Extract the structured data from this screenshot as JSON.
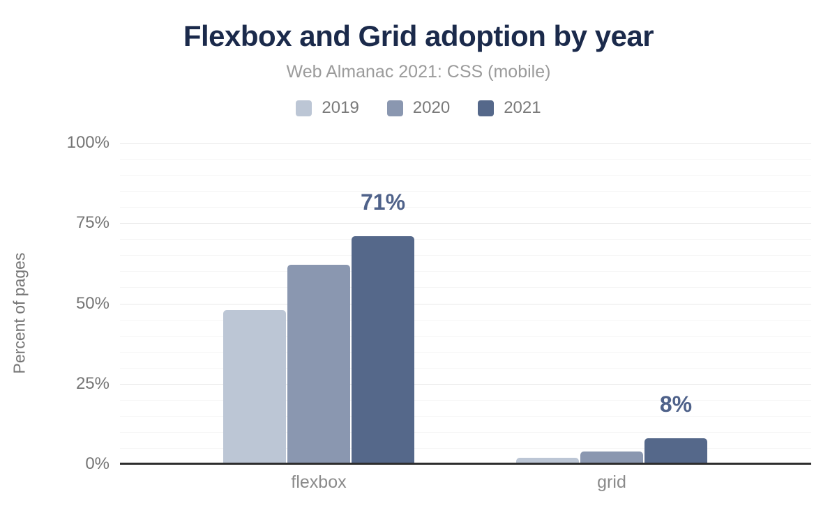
{
  "chart_data": {
    "type": "bar",
    "title": "Flexbox and Grid adoption by year",
    "subtitle": "Web Almanac 2021: CSS (mobile)",
    "categories": [
      "flexbox",
      "grid"
    ],
    "series": [
      {
        "name": "2019",
        "color": "#bcc6d5",
        "values": [
          48,
          2
        ]
      },
      {
        "name": "2020",
        "color": "#8a97b0",
        "values": [
          62,
          4
        ]
      },
      {
        "name": "2021",
        "color": "#55688a",
        "values": [
          71,
          8
        ]
      }
    ],
    "annotations": [
      {
        "category": "flexbox",
        "series": "2021",
        "text": "71%"
      },
      {
        "category": "grid",
        "series": "2021",
        "text": "8%"
      }
    ],
    "xlabel": "",
    "ylabel": "Percent of pages",
    "ylim": [
      0,
      100
    ],
    "yticks": [
      {
        "value": 0,
        "label": "0%"
      },
      {
        "value": 25,
        "label": "25%"
      },
      {
        "value": 50,
        "label": "50%"
      },
      {
        "value": 75,
        "label": "75%"
      },
      {
        "value": 100,
        "label": "100%"
      }
    ],
    "minor_grid_step": 5,
    "grid": "on",
    "legend_position": "top",
    "colors": {
      "title": "#1b2a4b",
      "subtitle": "#9b9b9b",
      "tick_labels": "#757575",
      "category_labels": "#8a8a8a",
      "data_labels": "#4f628a",
      "axis_line": "#2d2d2d",
      "gridline_major": "#e8e8e8",
      "gridline_minor": "#f5f5f5",
      "background": "#ffffff"
    }
  }
}
